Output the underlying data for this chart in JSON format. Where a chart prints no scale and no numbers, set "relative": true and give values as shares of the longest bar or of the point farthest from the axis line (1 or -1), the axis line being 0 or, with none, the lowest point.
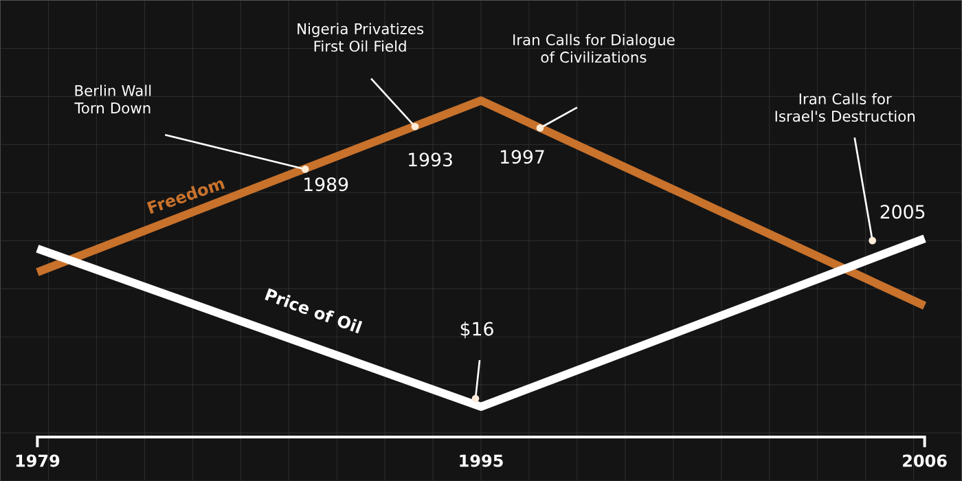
{
  "chart_data": {
    "type": "line",
    "relative": true,
    "categories": [
      "1979",
      "1995",
      "2006"
    ],
    "series": [
      {
        "name": "Freedom",
        "color": "#c8722c",
        "values": [
          0.49,
          1,
          0.39
        ]
      },
      {
        "name": "Price of Oil",
        "color": "#ffffff",
        "values": [
          0.56,
          0.09,
          0.59
        ]
      }
    ],
    "annotations": [
      "Berlin Wall Torn Down",
      "Nigeria Privatizes First Oil Field",
      "Iran Calls for Dialogue of Civilizations",
      "Iran Calls for Israel's Destruction",
      "$16",
      "1989",
      "1993",
      "1997",
      "2005"
    ],
    "marker": "none",
    "line_style": "solid",
    "legend": false
  }
}
